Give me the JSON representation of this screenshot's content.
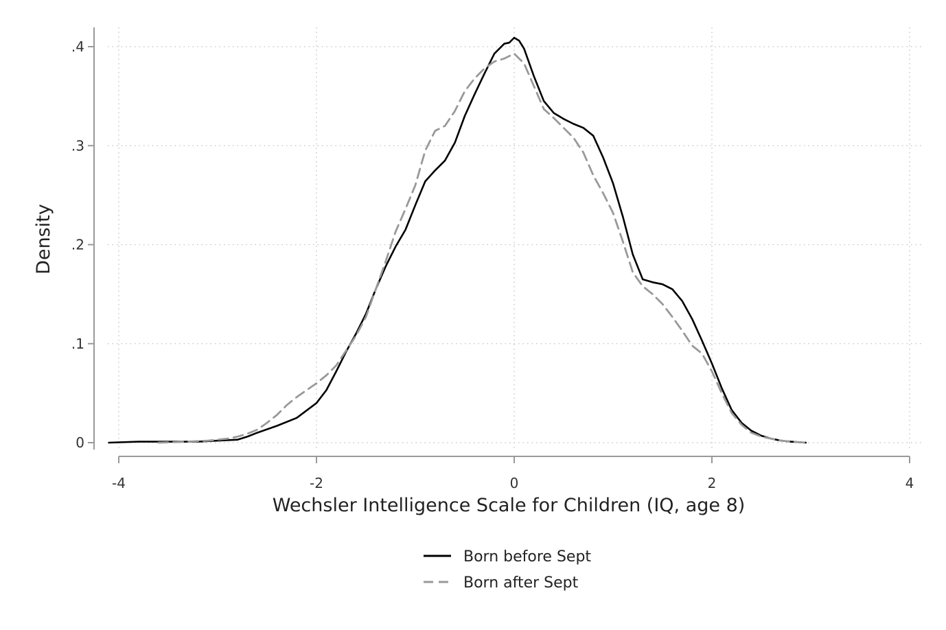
{
  "chart_data": {
    "type": "line",
    "title": "",
    "xlabel": "Wechsler Intelligence Scale for Children (IQ, age 8)",
    "ylabel": "Density",
    "xlim": [
      -4,
      4
    ],
    "ylim": [
      0,
      0.4
    ],
    "x_ticks": [
      {
        "value": -4,
        "label": "-4"
      },
      {
        "value": -2,
        "label": "-2"
      },
      {
        "value": 0,
        "label": "0"
      },
      {
        "value": 2,
        "label": "2"
      },
      {
        "value": 4,
        "label": "4"
      }
    ],
    "y_ticks": [
      {
        "value": 0,
        "label": "0"
      },
      {
        "value": 0.1,
        "label": ".1"
      },
      {
        "value": 0.2,
        "label": ".2"
      },
      {
        "value": 0.3,
        "label": ".3"
      },
      {
        "value": 0.4,
        "label": ".4"
      }
    ],
    "grid": true,
    "legend_position": "bottom",
    "series": [
      {
        "name": "Born before Sept",
        "color": "#000000",
        "dash": "solid",
        "points": [
          [
            -4.1,
            0.0
          ],
          [
            -3.8,
            0.001
          ],
          [
            -3.5,
            0.001
          ],
          [
            -3.2,
            0.001
          ],
          [
            -3.0,
            0.002
          ],
          [
            -2.8,
            0.003
          ],
          [
            -2.7,
            0.006
          ],
          [
            -2.6,
            0.01
          ],
          [
            -2.4,
            0.017
          ],
          [
            -2.2,
            0.025
          ],
          [
            -2.0,
            0.04
          ],
          [
            -1.9,
            0.053
          ],
          [
            -1.8,
            0.072
          ],
          [
            -1.7,
            0.092
          ],
          [
            -1.6,
            0.11
          ],
          [
            -1.5,
            0.13
          ],
          [
            -1.4,
            0.155
          ],
          [
            -1.3,
            0.178
          ],
          [
            -1.2,
            0.198
          ],
          [
            -1.1,
            0.215
          ],
          [
            -1.0,
            0.24
          ],
          [
            -0.9,
            0.264
          ],
          [
            -0.8,
            0.275
          ],
          [
            -0.7,
            0.285
          ],
          [
            -0.6,
            0.303
          ],
          [
            -0.5,
            0.33
          ],
          [
            -0.4,
            0.352
          ],
          [
            -0.3,
            0.373
          ],
          [
            -0.2,
            0.393
          ],
          [
            -0.1,
            0.403
          ],
          [
            -0.05,
            0.404
          ],
          [
            0.0,
            0.409
          ],
          [
            0.05,
            0.406
          ],
          [
            0.1,
            0.398
          ],
          [
            0.2,
            0.37
          ],
          [
            0.3,
            0.345
          ],
          [
            0.4,
            0.333
          ],
          [
            0.5,
            0.327
          ],
          [
            0.6,
            0.322
          ],
          [
            0.7,
            0.318
          ],
          [
            0.8,
            0.31
          ],
          [
            0.9,
            0.288
          ],
          [
            1.0,
            0.262
          ],
          [
            1.1,
            0.228
          ],
          [
            1.2,
            0.19
          ],
          [
            1.3,
            0.165
          ],
          [
            1.4,
            0.162
          ],
          [
            1.5,
            0.16
          ],
          [
            1.6,
            0.155
          ],
          [
            1.7,
            0.143
          ],
          [
            1.8,
            0.125
          ],
          [
            1.9,
            0.103
          ],
          [
            2.0,
            0.08
          ],
          [
            2.1,
            0.055
          ],
          [
            2.2,
            0.033
          ],
          [
            2.3,
            0.02
          ],
          [
            2.4,
            0.012
          ],
          [
            2.5,
            0.007
          ],
          [
            2.6,
            0.004
          ],
          [
            2.7,
            0.002
          ],
          [
            2.8,
            0.001
          ],
          [
            2.95,
            0.0
          ]
        ]
      },
      {
        "name": "Born after Sept",
        "color": "#999999",
        "dash": "dashed",
        "points": [
          [
            -3.6,
            0.0
          ],
          [
            -3.3,
            0.001
          ],
          [
            -3.1,
            0.002
          ],
          [
            -2.9,
            0.004
          ],
          [
            -2.8,
            0.006
          ],
          [
            -2.7,
            0.009
          ],
          [
            -2.6,
            0.013
          ],
          [
            -2.5,
            0.02
          ],
          [
            -2.4,
            0.028
          ],
          [
            -2.3,
            0.038
          ],
          [
            -2.2,
            0.046
          ],
          [
            -2.1,
            0.053
          ],
          [
            -2.0,
            0.06
          ],
          [
            -1.9,
            0.068
          ],
          [
            -1.8,
            0.078
          ],
          [
            -1.7,
            0.093
          ],
          [
            -1.6,
            0.108
          ],
          [
            -1.5,
            0.127
          ],
          [
            -1.4,
            0.155
          ],
          [
            -1.3,
            0.183
          ],
          [
            -1.2,
            0.213
          ],
          [
            -1.1,
            0.236
          ],
          [
            -1.0,
            0.26
          ],
          [
            -0.9,
            0.295
          ],
          [
            -0.8,
            0.315
          ],
          [
            -0.7,
            0.32
          ],
          [
            -0.6,
            0.335
          ],
          [
            -0.5,
            0.355
          ],
          [
            -0.4,
            0.368
          ],
          [
            -0.3,
            0.378
          ],
          [
            -0.2,
            0.385
          ],
          [
            -0.1,
            0.388
          ],
          [
            0.0,
            0.393
          ],
          [
            0.1,
            0.383
          ],
          [
            0.2,
            0.36
          ],
          [
            0.3,
            0.337
          ],
          [
            0.4,
            0.328
          ],
          [
            0.5,
            0.318
          ],
          [
            0.6,
            0.308
          ],
          [
            0.7,
            0.293
          ],
          [
            0.8,
            0.27
          ],
          [
            0.9,
            0.252
          ],
          [
            1.0,
            0.232
          ],
          [
            1.1,
            0.203
          ],
          [
            1.2,
            0.172
          ],
          [
            1.3,
            0.158
          ],
          [
            1.4,
            0.15
          ],
          [
            1.5,
            0.14
          ],
          [
            1.6,
            0.127
          ],
          [
            1.7,
            0.113
          ],
          [
            1.8,
            0.098
          ],
          [
            1.9,
            0.09
          ],
          [
            2.0,
            0.072
          ],
          [
            2.1,
            0.05
          ],
          [
            2.2,
            0.03
          ],
          [
            2.3,
            0.018
          ],
          [
            2.4,
            0.01
          ],
          [
            2.5,
            0.006
          ],
          [
            2.6,
            0.004
          ],
          [
            2.7,
            0.002
          ],
          [
            2.8,
            0.001
          ],
          [
            2.95,
            0.0
          ]
        ]
      }
    ]
  }
}
